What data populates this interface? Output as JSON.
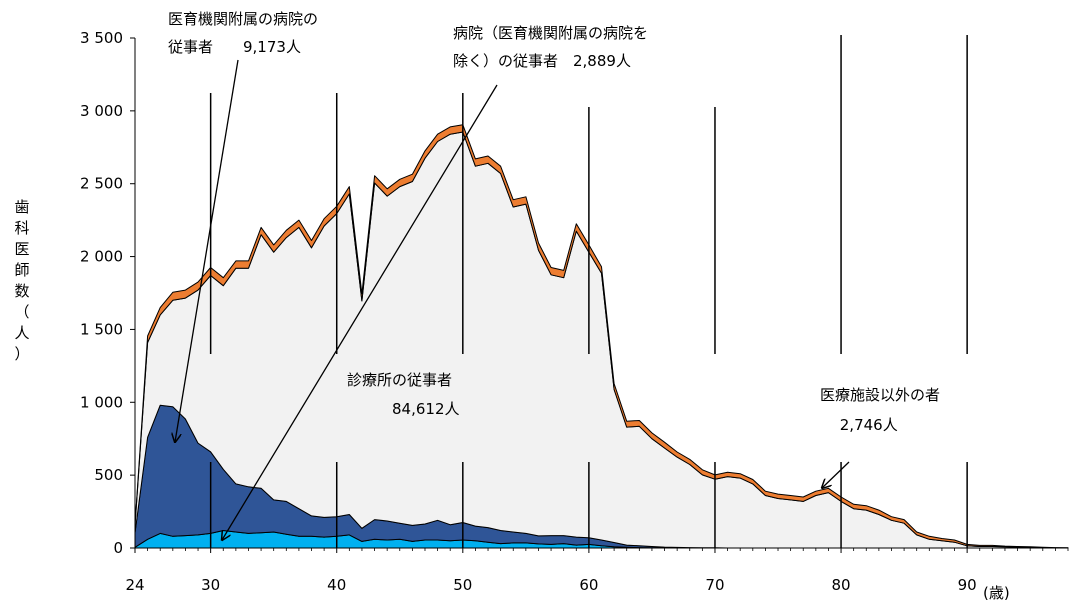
{
  "chart_data": {
    "type": "area",
    "stacked": true,
    "ylabel_chars": [
      "歯",
      "科",
      "医",
      "師",
      "数",
      "（",
      "人",
      "）"
    ],
    "xunit": "(歳)",
    "xlim": [
      24,
      98
    ],
    "ylim": [
      0,
      3500
    ],
    "yticks": [
      {
        "v": 0,
        "label": "0"
      },
      {
        "v": 500,
        "label": "500"
      },
      {
        "v": 1000,
        "label": "1 000"
      },
      {
        "v": 1500,
        "label": "1 500"
      },
      {
        "v": 2000,
        "label": "2 000"
      },
      {
        "v": 2500,
        "label": "2 500"
      },
      {
        "v": 3000,
        "label": "3 000"
      },
      {
        "v": 3500,
        "label": "3 500"
      }
    ],
    "xticks": [
      {
        "v": 24,
        "label": "24"
      },
      {
        "v": 30,
        "label": "30"
      },
      {
        "v": 40,
        "label": "40"
      },
      {
        "v": 50,
        "label": "50"
      },
      {
        "v": 60,
        "label": "60"
      },
      {
        "v": 70,
        "label": "70"
      },
      {
        "v": 80,
        "label": "80"
      },
      {
        "v": 90,
        "label": "90"
      }
    ],
    "x": [
      24,
      25,
      26,
      27,
      28,
      29,
      30,
      31,
      32,
      33,
      34,
      35,
      36,
      37,
      38,
      39,
      40,
      41,
      42,
      43,
      44,
      45,
      46,
      47,
      48,
      49,
      50,
      51,
      52,
      53,
      54,
      55,
      56,
      57,
      58,
      59,
      60,
      61,
      62,
      63,
      64,
      65,
      66,
      67,
      68,
      69,
      70,
      71,
      72,
      73,
      74,
      75,
      76,
      77,
      78,
      79,
      80,
      81,
      82,
      83,
      84,
      85,
      86,
      87,
      88,
      89,
      90,
      91,
      92,
      93,
      94,
      95,
      96,
      97,
      98
    ],
    "series": [
      {
        "key": "dept_hosp",
        "color": "#00b0f0",
        "values": [
          5,
          60,
          100,
          80,
          85,
          90,
          100,
          120,
          110,
          100,
          105,
          110,
          95,
          80,
          80,
          75,
          80,
          90,
          45,
          60,
          55,
          60,
          45,
          55,
          55,
          50,
          55,
          50,
          40,
          30,
          35,
          35,
          28,
          25,
          30,
          20,
          25,
          15,
          8,
          5,
          3,
          2,
          1,
          1,
          1,
          1,
          1,
          0,
          0,
          0,
          0,
          0,
          0,
          0,
          0,
          0,
          0,
          0,
          0,
          0,
          0,
          0,
          0,
          0,
          0,
          0,
          0,
          0,
          0,
          0,
          0,
          0,
          0,
          0,
          0
        ]
      },
      {
        "key": "univ_hosp",
        "color": "#2f5597",
        "values": [
          100,
          700,
          880,
          890,
          800,
          630,
          560,
          420,
          330,
          320,
          305,
          220,
          225,
          190,
          140,
          135,
          135,
          140,
          90,
          135,
          130,
          110,
          110,
          110,
          135,
          110,
          120,
          100,
          100,
          90,
          75,
          65,
          55,
          60,
          55,
          55,
          45,
          40,
          30,
          15,
          12,
          8,
          5,
          3,
          2,
          1,
          1,
          0,
          0,
          0,
          0,
          0,
          0,
          0,
          0,
          0,
          0,
          0,
          0,
          0,
          0,
          0,
          0,
          0,
          0,
          0,
          0,
          0,
          0,
          0,
          0,
          0,
          0,
          0,
          0
        ]
      },
      {
        "key": "clinic",
        "color": "#f2f2f2",
        "values": [
          50,
          650,
          620,
          730,
          830,
          1050,
          1210,
          1260,
          1480,
          1500,
          1740,
          1700,
          1810,
          1930,
          1840,
          2000,
          2080,
          2200,
          1560,
          2310,
          2230,
          2310,
          2360,
          2510,
          2600,
          2680,
          2680,
          2470,
          2500,
          2450,
          2230,
          2260,
          1960,
          1790,
          1770,
          2100,
          1960,
          1830,
          1050,
          810,
          820,
          740,
          680,
          620,
          570,
          500,
          470,
          490,
          480,
          440,
          360,
          340,
          330,
          320,
          360,
          380,
          320,
          270,
          260,
          230,
          190,
          170,
          90,
          60,
          50,
          40,
          15,
          10,
          10,
          8,
          5,
          4,
          2,
          1,
          1
        ]
      },
      {
        "key": "non_medical",
        "color": "#ed7d31",
        "values": [
          5,
          45,
          50,
          55,
          55,
          55,
          55,
          55,
          50,
          50,
          50,
          50,
          50,
          50,
          50,
          50,
          50,
          50,
          50,
          50,
          50,
          50,
          50,
          50,
          50,
          50,
          50,
          50,
          50,
          50,
          50,
          50,
          50,
          50,
          50,
          50,
          50,
          45,
          40,
          40,
          40,
          40,
          40,
          35,
          35,
          35,
          30,
          30,
          30,
          30,
          30,
          30,
          30,
          30,
          30,
          30,
          30,
          30,
          30,
          30,
          25,
          25,
          20,
          20,
          15,
          15,
          10,
          8,
          8,
          5,
          5,
          4,
          3,
          2,
          1
        ]
      }
    ],
    "annotations": [
      {
        "key": "univ_hosp",
        "lines": [
          "医育機関附属の病院の",
          "従事者　　9,173人"
        ]
      },
      {
        "key": "dept_hosp",
        "lines": [
          "病院（医育機関附属の病院を",
          "除く）の従事者　2,889人"
        ]
      },
      {
        "key": "clinic",
        "lines": [
          "診療所の従事者",
          "　　　84,612人"
        ]
      },
      {
        "key": "non_medical",
        "lines": [
          "医療施設以外の者",
          "　 2,746人"
        ]
      }
    ]
  }
}
